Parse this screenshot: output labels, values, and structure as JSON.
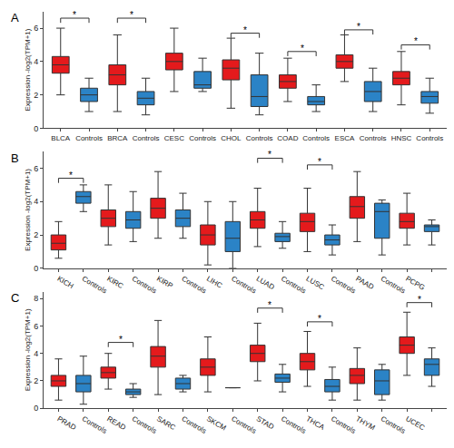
{
  "chart_data": [
    {
      "type": "box",
      "panel": "A",
      "y_label": "Expression -log2(TPM+1)",
      "ylim": [
        0,
        7
      ],
      "yticks": [
        0,
        2,
        4,
        6
      ],
      "categories": [
        "BLCA",
        "Controls",
        "BRCA",
        "Controls",
        "CESC",
        "Controls",
        "CHOL",
        "Controls",
        "COAD",
        "Controls",
        "ESCA",
        "Controls",
        "HNSC",
        "Controls"
      ],
      "colors": [
        "#e41a1c",
        "#2b83c6",
        "#e41a1c",
        "#2b83c6",
        "#e41a1c",
        "#2b83c6",
        "#e41a1c",
        "#2b83c6",
        "#e41a1c",
        "#2b83c6",
        "#e41a1c",
        "#2b83c6",
        "#e41a1c",
        "#2b83c6"
      ],
      "lower": [
        2.0,
        1.0,
        1.0,
        0.8,
        2.2,
        2.2,
        1.2,
        0.8,
        1.6,
        1.0,
        2.8,
        1.0,
        1.4,
        0.9
      ],
      "q1": [
        3.3,
        1.6,
        2.6,
        1.4,
        3.5,
        2.4,
        2.9,
        1.3,
        2.4,
        1.4,
        3.6,
        1.6,
        2.6,
        1.5
      ],
      "median": [
        3.8,
        2.0,
        3.2,
        1.8,
        4.0,
        2.6,
        3.6,
        1.9,
        2.8,
        1.6,
        4.0,
        2.2,
        3.0,
        1.9
      ],
      "q3": [
        4.3,
        2.4,
        3.8,
        2.2,
        4.5,
        3.4,
        4.1,
        3.2,
        3.2,
        1.9,
        4.4,
        2.8,
        3.4,
        2.2
      ],
      "upper": [
        6.0,
        3.0,
        5.6,
        3.0,
        6.0,
        4.2,
        5.4,
        4.5,
        4.2,
        2.6,
        5.6,
        3.6,
        4.6,
        3.0
      ],
      "significance": [
        {
          "pair": 0,
          "y": 6.6,
          "label": "*"
        },
        {
          "pair": 1,
          "y": 6.6,
          "label": "*"
        },
        {
          "pair": 3,
          "y": 5.7,
          "label": "*"
        },
        {
          "pair": 4,
          "y": 4.6,
          "label": "*"
        },
        {
          "pair": 5,
          "y": 5.9,
          "label": "*"
        },
        {
          "pair": 6,
          "y": 5.0,
          "label": "*"
        }
      ]
    },
    {
      "type": "box",
      "panel": "B",
      "y_label": "Expression -log2(TPM+1)",
      "ylim": [
        0,
        7
      ],
      "yticks": [
        0,
        2,
        4,
        6
      ],
      "categories": [
        "KICH",
        "Controls",
        "KIRC",
        "Controls",
        "KIRP",
        "Controls",
        "LIHC",
        "Controls",
        "LUAD",
        "Controls",
        "LUSC",
        "Controls",
        "PAAD",
        "Controls",
        "PCPG",
        "Controls"
      ],
      "colors": [
        "#e41a1c",
        "#2b83c6",
        "#e41a1c",
        "#2b83c6",
        "#e41a1c",
        "#2b83c6",
        "#e41a1c",
        "#2b83c6",
        "#e41a1c",
        "#2b83c6",
        "#e41a1c",
        "#2b83c6",
        "#e41a1c",
        "#2b83c6",
        "#e41a1c",
        "#2b83c6"
      ],
      "lower": [
        0.6,
        3.4,
        1.4,
        1.6,
        1.8,
        1.8,
        0.2,
        0.0,
        1.3,
        1.2,
        1.0,
        0.8,
        1.6,
        0.8,
        1.4,
        1.4
      ],
      "q1": [
        1.1,
        3.9,
        2.5,
        2.4,
        3.0,
        2.5,
        1.4,
        1.0,
        2.4,
        1.6,
        2.2,
        1.4,
        3.0,
        1.8,
        2.4,
        2.2
      ],
      "median": [
        1.5,
        4.3,
        3.0,
        2.9,
        3.6,
        3.0,
        2.0,
        1.8,
        2.9,
        1.9,
        2.8,
        1.7,
        3.7,
        3.4,
        2.8,
        2.5
      ],
      "q3": [
        2.0,
        4.6,
        3.5,
        3.4,
        4.2,
        3.5,
        2.6,
        2.8,
        3.4,
        2.1,
        3.3,
        2.0,
        4.3,
        3.9,
        3.3,
        2.6
      ],
      "upper": [
        2.8,
        5.0,
        5.0,
        4.6,
        5.8,
        4.5,
        4.0,
        4.0,
        4.8,
        2.8,
        4.8,
        2.6,
        5.8,
        4.1,
        4.5,
        2.9
      ],
      "significance": [
        {
          "pair": 0,
          "y": 5.4,
          "label": "*"
        },
        {
          "pair": 4,
          "y": 6.6,
          "label": "*"
        },
        {
          "pair": 5,
          "y": 6.2,
          "label": "*"
        }
      ]
    },
    {
      "type": "box",
      "panel": "C",
      "y_label": "Expression -log2(TPM+1)",
      "ylim": [
        0,
        8.5
      ],
      "yticks": [
        0,
        2,
        4,
        6,
        8
      ],
      "categories": [
        "PRAD",
        "Controls",
        "READ",
        "Controls",
        "SARC",
        "Controls",
        "SKCM",
        "Controls",
        "STAD",
        "Controls",
        "THCA",
        "Controls",
        "THYM",
        "Controls",
        "UCEC",
        "Controls"
      ],
      "colors": [
        "#e41a1c",
        "#2b83c6",
        "#e41a1c",
        "#2b83c6",
        "#e41a1c",
        "#2b83c6",
        "#e41a1c",
        "#2b83c6",
        "#e41a1c",
        "#2b83c6",
        "#e41a1c",
        "#2b83c6",
        "#e41a1c",
        "#2b83c6",
        "#e41a1c",
        "#2b83c6"
      ],
      "lower": [
        0.6,
        0.3,
        1.4,
        0.8,
        1.0,
        1.2,
        1.2,
        1.5,
        2.0,
        1.2,
        1.6,
        0.6,
        0.6,
        0.6,
        2.4,
        1.6
      ],
      "q1": [
        1.6,
        1.2,
        2.2,
        1.0,
        3.0,
        1.4,
        2.4,
        1.5,
        3.4,
        1.9,
        2.8,
        1.2,
        1.8,
        1.0,
        4.0,
        2.4
      ],
      "median": [
        2.0,
        1.8,
        2.6,
        1.2,
        3.8,
        1.8,
        3.0,
        1.5,
        4.0,
        2.2,
        3.4,
        1.6,
        2.4,
        2.0,
        4.6,
        3.2
      ],
      "q3": [
        2.4,
        2.4,
        3.0,
        1.4,
        4.5,
        2.2,
        3.6,
        1.5,
        4.6,
        2.5,
        4.0,
        2.1,
        2.9,
        2.8,
        5.2,
        3.6
      ],
      "upper": [
        3.6,
        3.8,
        4.0,
        1.8,
        6.4,
        2.4,
        5.2,
        1.5,
        6.2,
        3.2,
        5.6,
        3.0,
        4.4,
        3.2,
        7.0,
        4.4
      ],
      "significance": [
        {
          "pair": 1,
          "y": 4.8,
          "label": "*"
        },
        {
          "pair": 4,
          "y": 7.3,
          "label": "*"
        },
        {
          "pair": 5,
          "y": 6.3,
          "label": "*"
        },
        {
          "pair": 7,
          "y": 7.7,
          "label": "*"
        }
      ]
    }
  ]
}
